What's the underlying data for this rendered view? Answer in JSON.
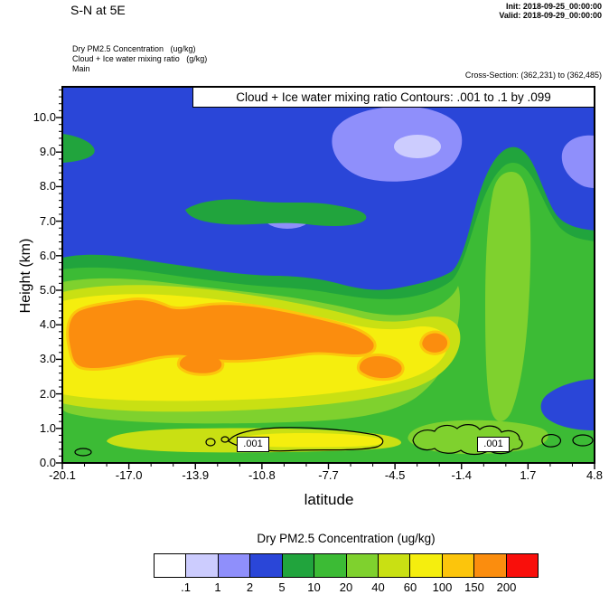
{
  "header": {
    "title": "S-N at 5E",
    "init": "Init: 2018-09-25_00:00:00",
    "valid": "Valid: 2018-09-29_00:00:00",
    "field1": "Dry PM2.5 Concentration   (ug/kg)",
    "field2": "Cloud + Ice water mixing ratio   (g/kg)",
    "field3": "Main",
    "cross_section": "Cross-Section: (362,231) to (362,485)"
  },
  "chart_data": {
    "type": "heatmap",
    "subtype": "filled-contour vertical cross-section (model output)",
    "title": "Cloud + Ice water mixing ratio Contours: .001 to .1 by .099",
    "xlabel": "latitude",
    "ylabel": "Height (km)",
    "x_tick_labels": [
      "-20.1",
      "-17.0",
      "-13.9",
      "-10.8",
      "-7.7",
      "-4.5",
      "-1.4",
      "1.7",
      "4.8"
    ],
    "y_tick_labels": [
      "0.0",
      "1.0",
      "2.0",
      "3.0",
      "4.0",
      "5.0",
      "6.0",
      "7.0",
      "8.0",
      "9.0",
      "10.0"
    ],
    "xlim": [
      -20.1,
      4.8
    ],
    "ylim": [
      0,
      10.9
    ],
    "grid": false,
    "legend_position": "bottom colorbar",
    "fill_levels": [
      0.1,
      1,
      2,
      5,
      10,
      20,
      40,
      60,
      100,
      150,
      200
    ],
    "palette": [
      "#ffffff",
      "#ccccfe",
      "#8f8ffb",
      "#2a46d8",
      "#21a43d",
      "#3cbb35",
      "#7fd12e",
      "#c9e013",
      "#f5ee0e",
      "#fcc50c",
      "#fb8d0e",
      "#f90f0b"
    ],
    "colorbar": {
      "title": "Dry PM2.5 Concentration  (ug/kg)",
      "tick_labels": [
        ".1",
        "1",
        "2",
        "5",
        "10",
        "20",
        "40",
        "60",
        "100",
        "150",
        "200"
      ]
    },
    "overlay_contours": {
      "variable": "Cloud + Ice water mixing ratio",
      "levels": [
        0.001,
        0.1
      ],
      "label": ".001",
      "note": "black closed contours near 0.5-1 km height, labeled .001 in boxes"
    },
    "field_estimate": {
      "units": "ug/kg",
      "note": "PM2.5 values estimated from fill colors at lat/height grid",
      "lats": [
        -20,
        -17,
        -14,
        -11,
        -8,
        -5,
        -2,
        1,
        4
      ],
      "heights_km": [
        0.5,
        1,
        2,
        3,
        4,
        5,
        6,
        7,
        8,
        9,
        10
      ],
      "values": [
        [
          15,
          30,
          45,
          45,
          40,
          25,
          30,
          25,
          10
        ],
        [
          15,
          40,
          60,
          60,
          50,
          25,
          15,
          10,
          5
        ],
        [
          30,
          70,
          90,
          90,
          80,
          60,
          20,
          12,
          4
        ],
        [
          70,
          110,
          130,
          120,
          130,
          70,
          30,
          15,
          4
        ],
        [
          90,
          130,
          140,
          130,
          110,
          50,
          30,
          15,
          4
        ],
        [
          50,
          70,
          70,
          60,
          40,
          20,
          15,
          12,
          4
        ],
        [
          12,
          18,
          18,
          15,
          12,
          8,
          10,
          10,
          4
        ],
        [
          5,
          9,
          12,
          9,
          6,
          4,
          8,
          9,
          3
        ],
        [
          4,
          4,
          4,
          4,
          3,
          3,
          7,
          9,
          3
        ],
        [
          5,
          3,
          3,
          3,
          3,
          2,
          5,
          7,
          2
        ],
        [
          3,
          3,
          3,
          2,
          2,
          2,
          3,
          4,
          2
        ]
      ]
    }
  }
}
